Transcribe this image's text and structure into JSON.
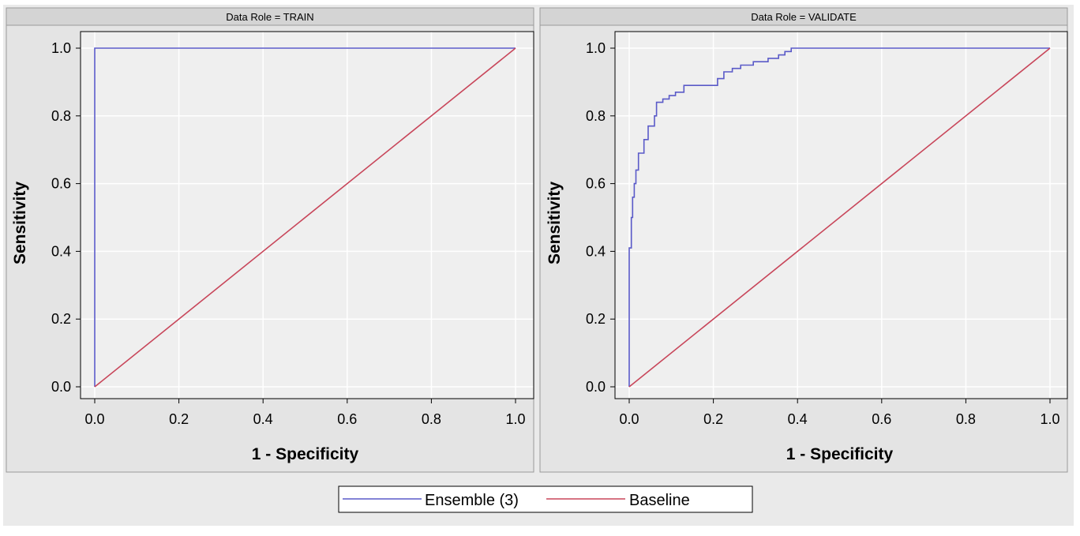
{
  "legend": {
    "entries": [
      {
        "name": "Ensemble (3)",
        "color": "#5a5ac8"
      },
      {
        "name": "Baseline",
        "color": "#c8465a"
      }
    ]
  },
  "chart_data": [
    {
      "type": "line",
      "title": "Data Role = TRAIN",
      "xlabel": "1 - Specificity",
      "ylabel": "Sensitivity",
      "xlim": [
        0,
        1
      ],
      "ylim": [
        0,
        1
      ],
      "xticks": [
        "0.0",
        "0.2",
        "0.4",
        "0.6",
        "0.8",
        "1.0"
      ],
      "yticks": [
        "0.0",
        "0.2",
        "0.4",
        "0.6",
        "0.8",
        "1.0"
      ],
      "grid": true,
      "series": [
        {
          "name": "Ensemble (3)",
          "color": "#5a5ac8",
          "points": [
            [
              0,
              0
            ],
            [
              0,
              1
            ],
            [
              1,
              1
            ]
          ]
        },
        {
          "name": "Baseline",
          "color": "#c8465a",
          "points": [
            [
              0,
              0
            ],
            [
              1,
              1
            ]
          ]
        }
      ]
    },
    {
      "type": "line",
      "title": "Data Role = VALIDATE",
      "xlabel": "1 - Specificity",
      "ylabel": "Sensitivity",
      "xlim": [
        0,
        1
      ],
      "ylim": [
        0,
        1
      ],
      "xticks": [
        "0.0",
        "0.2",
        "0.4",
        "0.6",
        "0.8",
        "1.0"
      ],
      "yticks": [
        "0.0",
        "0.2",
        "0.4",
        "0.6",
        "0.8",
        "1.0"
      ],
      "grid": true,
      "series": [
        {
          "name": "Ensemble (3)",
          "color": "#5a5ac8",
          "points": [
            [
              0,
              0
            ],
            [
              0,
              0.41
            ],
            [
              0.005,
              0.41
            ],
            [
              0.005,
              0.5
            ],
            [
              0.008,
              0.5
            ],
            [
              0.008,
              0.56
            ],
            [
              0.012,
              0.56
            ],
            [
              0.012,
              0.6
            ],
            [
              0.016,
              0.6
            ],
            [
              0.016,
              0.64
            ],
            [
              0.022,
              0.64
            ],
            [
              0.022,
              0.69
            ],
            [
              0.035,
              0.69
            ],
            [
              0.035,
              0.73
            ],
            [
              0.045,
              0.73
            ],
            [
              0.045,
              0.77
            ],
            [
              0.06,
              0.77
            ],
            [
              0.06,
              0.8
            ],
            [
              0.065,
              0.8
            ],
            [
              0.065,
              0.84
            ],
            [
              0.08,
              0.84
            ],
            [
              0.08,
              0.85
            ],
            [
              0.095,
              0.85
            ],
            [
              0.095,
              0.86
            ],
            [
              0.11,
              0.86
            ],
            [
              0.11,
              0.87
            ],
            [
              0.13,
              0.87
            ],
            [
              0.13,
              0.89
            ],
            [
              0.21,
              0.89
            ],
            [
              0.21,
              0.91
            ],
            [
              0.225,
              0.91
            ],
            [
              0.225,
              0.93
            ],
            [
              0.245,
              0.93
            ],
            [
              0.245,
              0.94
            ],
            [
              0.265,
              0.94
            ],
            [
              0.265,
              0.95
            ],
            [
              0.295,
              0.95
            ],
            [
              0.295,
              0.96
            ],
            [
              0.33,
              0.96
            ],
            [
              0.33,
              0.97
            ],
            [
              0.355,
              0.97
            ],
            [
              0.355,
              0.98
            ],
            [
              0.37,
              0.98
            ],
            [
              0.37,
              0.99
            ],
            [
              0.385,
              0.99
            ],
            [
              0.385,
              1.0
            ],
            [
              1,
              1
            ]
          ]
        },
        {
          "name": "Baseline",
          "color": "#c8465a",
          "points": [
            [
              0,
              0
            ],
            [
              1,
              1
            ]
          ]
        }
      ]
    }
  ]
}
